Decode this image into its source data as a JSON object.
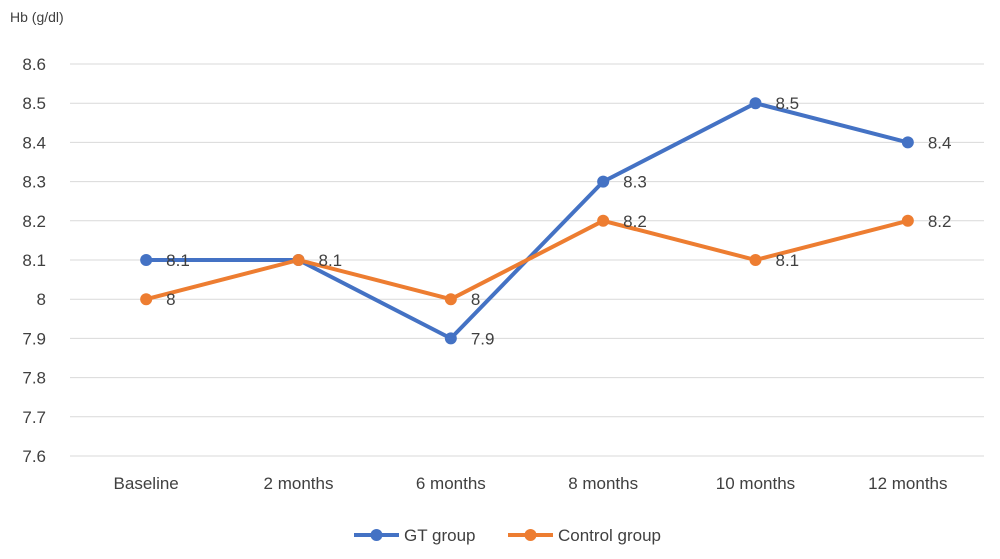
{
  "chart_data": {
    "type": "line",
    "title": "",
    "xlabel": "",
    "ylabel": "Hb (g/dl)",
    "categories": [
      "Baseline",
      "2 months",
      "6 months",
      "8 months",
      "10 months",
      "12 months"
    ],
    "ylim": [
      7.6,
      8.6
    ],
    "yticks": [
      "7.6",
      "7.7",
      "7.8",
      "7.9",
      "8",
      "8.1",
      "8.2",
      "8.3",
      "8.4",
      "8.5",
      "8.6"
    ],
    "grid": true,
    "legend_position": "bottom",
    "series": [
      {
        "name": "GT group",
        "color": "#4472C4",
        "values": [
          8.1,
          8.1,
          7.9,
          8.3,
          8.5,
          8.4
        ],
        "labels": [
          "8.1",
          "8.1",
          "7.9",
          "8.3",
          "8.5",
          "8.4"
        ]
      },
      {
        "name": "Control group",
        "color": "#ED7D31",
        "values": [
          8,
          8.1,
          8,
          8.2,
          8.1,
          8.2
        ],
        "labels": [
          "8",
          "",
          "8",
          "8.2",
          "8.1",
          "8.2"
        ]
      }
    ]
  }
}
